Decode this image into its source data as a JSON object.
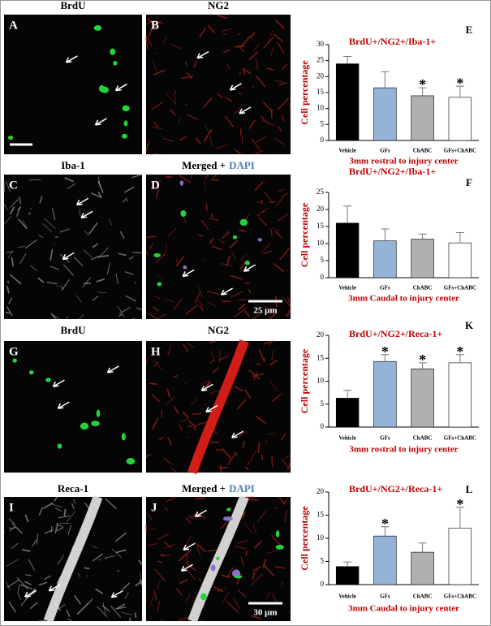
{
  "panels": [
    {
      "letter": "A",
      "title": [
        "BrdU"
      ]
    },
    {
      "letter": "B",
      "title": [
        "NG2"
      ]
    },
    {
      "letter": "C",
      "title": [
        "Iba-1"
      ]
    },
    {
      "letter": "D",
      "title": [
        "Merged +",
        "DAPI"
      ],
      "scale": "25 μm"
    },
    {
      "letter": "G",
      "title": [
        "BrdU"
      ]
    },
    {
      "letter": "H",
      "title": [
        "NG2"
      ]
    },
    {
      "letter": "I",
      "title": [
        "Reca-1"
      ]
    },
    {
      "letter": "J",
      "title": [
        "Merged +",
        "DAPI"
      ],
      "scale": "30 μm"
    }
  ],
  "chart_data": [
    {
      "type": "bar",
      "letter": "E",
      "title": "BrdU+/NG2+/Iba-1+",
      "x_label": "3mm rostral to injury center",
      "y_label": "Cell percentage",
      "categories": [
        "Vehicle",
        "GFs",
        "ChABC",
        "GFs+ChABC"
      ],
      "values": [
        24,
        16.5,
        14,
        13.5
      ],
      "errors": [
        2.3,
        5,
        2.5,
        3.5
      ],
      "significance": [
        null,
        null,
        "*",
        "*"
      ],
      "colors": [
        "#000000",
        "#95b3d7",
        "#b0b0b0",
        "#ffffff"
      ],
      "ylim": [
        0,
        30
      ],
      "yticks": [
        0,
        5,
        10,
        15,
        20,
        25,
        30
      ]
    },
    {
      "type": "bar",
      "letter": "F",
      "title": "BrdU+/NG2+/Iba-1+",
      "x_label": "3mm Caudal to injury center",
      "y_label": "Cell percentage",
      "categories": [
        "Vehicle",
        "GFs",
        "ChABC",
        "GFs+ChABC"
      ],
      "values": [
        16,
        10.8,
        11.3,
        10.2
      ],
      "errors": [
        5,
        3.5,
        1.5,
        3
      ],
      "significance": [
        null,
        null,
        null,
        null
      ],
      "colors": [
        "#000000",
        "#95b3d7",
        "#b0b0b0",
        "#ffffff"
      ],
      "ylim": [
        0,
        25
      ],
      "yticks": [
        0,
        5,
        10,
        15,
        20,
        25
      ]
    },
    {
      "type": "bar",
      "letter": "K",
      "title": "BrdU+/NG2+/Reca-1+",
      "x_label": "3mm rostral to injury center",
      "y_label": "Cell percentage",
      "categories": [
        "Vehicle",
        "GFs",
        "ChABC",
        "GFs+ChABC"
      ],
      "values": [
        6.3,
        14.3,
        12.7,
        14
      ],
      "errors": [
        1.7,
        1.5,
        1.3,
        1.8
      ],
      "significance": [
        null,
        "*",
        "*",
        "*"
      ],
      "colors": [
        "#000000",
        "#95b3d7",
        "#b0b0b0",
        "#ffffff"
      ],
      "ylim": [
        0,
        20
      ],
      "yticks": [
        0,
        5,
        10,
        15,
        20
      ]
    },
    {
      "type": "bar",
      "letter": "L",
      "title": "BrdU+/NG2+/Reca-1+",
      "x_label": "3mm Caudal to injury center",
      "y_label": "Cell percentage",
      "categories": [
        "Vehicle",
        "GFs",
        "ChABC",
        "GFs+ChABC"
      ],
      "values": [
        3.9,
        10.5,
        7,
        12.2
      ],
      "errors": [
        1,
        2,
        2,
        4.5
      ],
      "significance": [
        null,
        "*",
        null,
        "*"
      ],
      "colors": [
        "#000000",
        "#95b3d7",
        "#b0b0b0",
        "#ffffff"
      ],
      "ylim": [
        0,
        20
      ],
      "yticks": [
        0,
        5,
        10,
        15,
        20
      ]
    }
  ]
}
